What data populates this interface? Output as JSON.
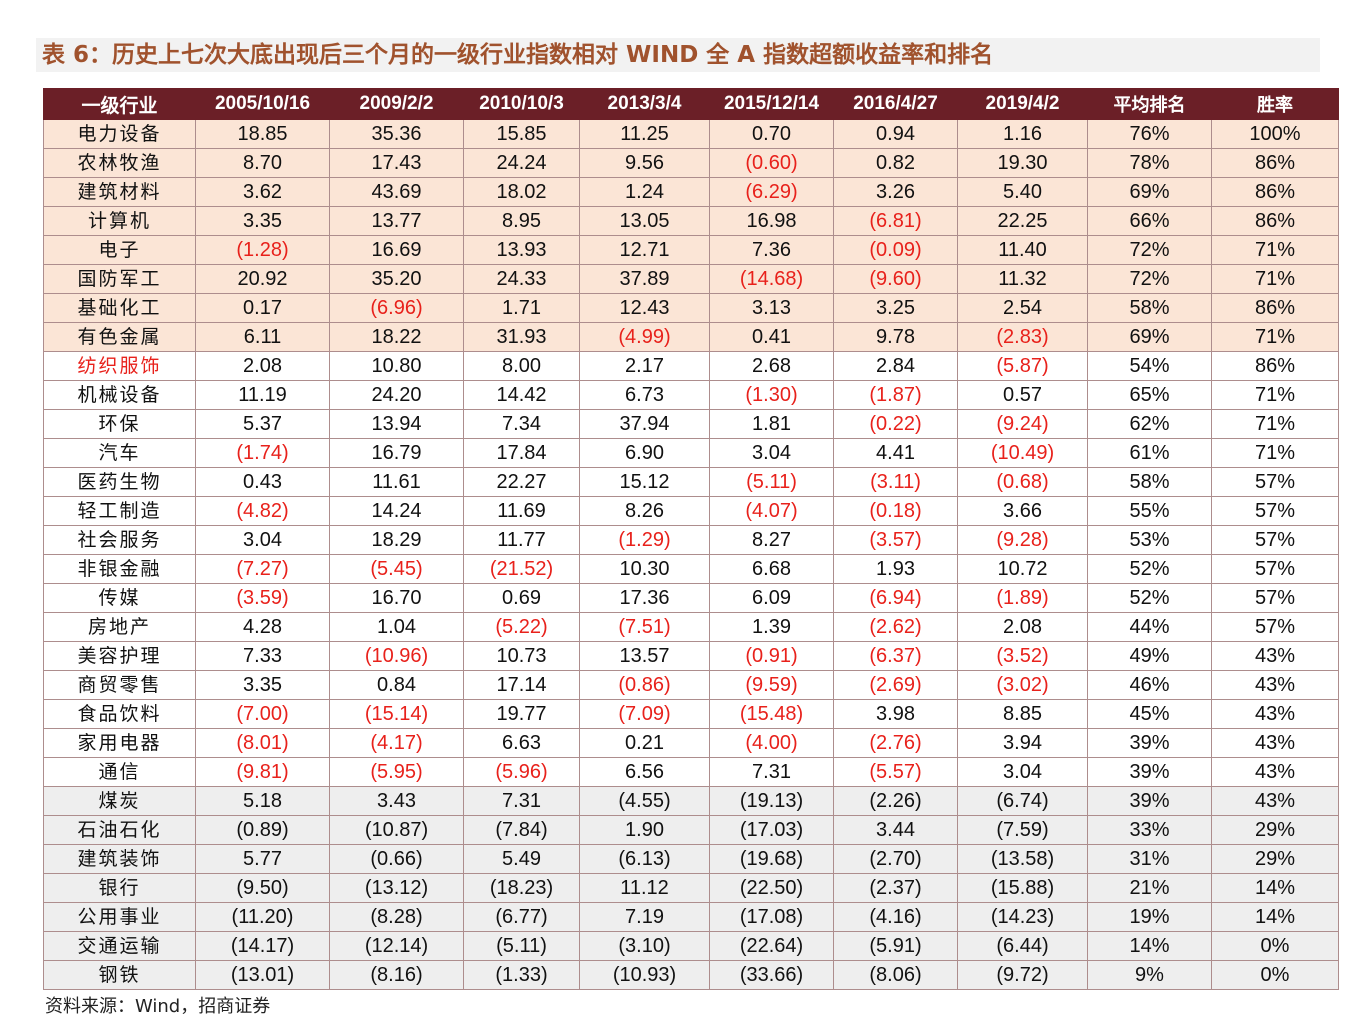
{
  "title": "表 6：历史上七次大底出现后三个月的一级行业指数相对 WIND 全 A 指数超额收益率和排名",
  "colors": {
    "header_bg": "#6b1f27",
    "top_group_bg": "#fbe5d6",
    "bottom_group_bg": "#eeeeee",
    "negative_text": "#e8211b",
    "title_text": "#a0522d"
  },
  "table": {
    "headers": [
      "一级行业",
      "2005/10/16",
      "2009/2/2",
      "2010/10/3",
      "2013/3/4",
      "2015/12/14",
      "2016/4/27",
      "2019/4/2",
      "平均排名",
      "胜率"
    ],
    "rows": [
      {
        "group": "top",
        "cells": [
          "电力设备",
          "18.85",
          "35.36",
          "15.85",
          "11.25",
          "0.70",
          "0.94",
          "1.16",
          "76%",
          "100%"
        ]
      },
      {
        "group": "top",
        "cells": [
          "农林牧渔",
          "8.70",
          "17.43",
          "24.24",
          "9.56",
          "(0.60)",
          "0.82",
          "19.30",
          "78%",
          "86%"
        ]
      },
      {
        "group": "top",
        "cells": [
          "建筑材料",
          "3.62",
          "43.69",
          "18.02",
          "1.24",
          "(6.29)",
          "3.26",
          "5.40",
          "69%",
          "86%"
        ]
      },
      {
        "group": "top",
        "cells": [
          "计算机",
          "3.35",
          "13.77",
          "8.95",
          "13.05",
          "16.98",
          "(6.81)",
          "22.25",
          "66%",
          "86%"
        ]
      },
      {
        "group": "top",
        "cells": [
          "电子",
          "(1.28)",
          "16.69",
          "13.93",
          "12.71",
          "7.36",
          "(0.09)",
          "11.40",
          "72%",
          "71%"
        ]
      },
      {
        "group": "top",
        "cells": [
          "国防军工",
          "20.92",
          "35.20",
          "24.33",
          "37.89",
          "(14.68)",
          "(9.60)",
          "11.32",
          "72%",
          "71%"
        ]
      },
      {
        "group": "top",
        "cells": [
          "基础化工",
          "0.17",
          "(6.96)",
          "1.71",
          "12.43",
          "3.13",
          "3.25",
          "2.54",
          "58%",
          "86%"
        ]
      },
      {
        "group": "top",
        "cells": [
          "有色金属",
          "6.11",
          "18.22",
          "31.93",
          "(4.99)",
          "0.41",
          "9.78",
          "(2.83)",
          "69%",
          "71%"
        ]
      },
      {
        "group": "mid",
        "cells": [
          "纺织服饰",
          "2.08",
          "10.80",
          "8.00",
          "2.17",
          "2.68",
          "2.84",
          "(5.87)",
          "54%",
          "86%"
        ]
      },
      {
        "group": "mid",
        "cells": [
          "机械设备",
          "11.19",
          "24.20",
          "14.42",
          "6.73",
          "(1.30)",
          "(1.87)",
          "0.57",
          "65%",
          "71%"
        ]
      },
      {
        "group": "mid",
        "cells": [
          "环保",
          "5.37",
          "13.94",
          "7.34",
          "37.94",
          "1.81",
          "(0.22)",
          "(9.24)",
          "62%",
          "71%"
        ]
      },
      {
        "group": "mid",
        "cells": [
          "汽车",
          "(1.74)",
          "16.79",
          "17.84",
          "6.90",
          "3.04",
          "4.41",
          "(10.49)",
          "61%",
          "71%"
        ]
      },
      {
        "group": "mid",
        "cells": [
          "医药生物",
          "0.43",
          "11.61",
          "22.27",
          "15.12",
          "(5.11)",
          "(3.11)",
          "(0.68)",
          "58%",
          "57%"
        ]
      },
      {
        "group": "mid",
        "cells": [
          "轻工制造",
          "(4.82)",
          "14.24",
          "11.69",
          "8.26",
          "(4.07)",
          "(0.18)",
          "3.66",
          "55%",
          "57%"
        ]
      },
      {
        "group": "mid",
        "cells": [
          "社会服务",
          "3.04",
          "18.29",
          "11.77",
          "(1.29)",
          "8.27",
          "(3.57)",
          "(9.28)",
          "53%",
          "57%"
        ]
      },
      {
        "group": "mid",
        "cells": [
          "非银金融",
          "(7.27)",
          "(5.45)",
          "(21.52)",
          "10.30",
          "6.68",
          "1.93",
          "10.72",
          "52%",
          "57%"
        ]
      },
      {
        "group": "mid",
        "cells": [
          "传媒",
          "(3.59)",
          "16.70",
          "0.69",
          "17.36",
          "6.09",
          "(6.94)",
          "(1.89)",
          "52%",
          "57%"
        ]
      },
      {
        "group": "mid",
        "cells": [
          "房地产",
          "4.28",
          "1.04",
          "(5.22)",
          "(7.51)",
          "1.39",
          "(2.62)",
          "2.08",
          "44%",
          "57%"
        ]
      },
      {
        "group": "mid",
        "cells": [
          "美容护理",
          "7.33",
          "(10.96)",
          "10.73",
          "13.57",
          "(0.91)",
          "(6.37)",
          "(3.52)",
          "49%",
          "43%"
        ]
      },
      {
        "group": "mid",
        "cells": [
          "商贸零售",
          "3.35",
          "0.84",
          "17.14",
          "(0.86)",
          "(9.59)",
          "(2.69)",
          "(3.02)",
          "46%",
          "43%"
        ]
      },
      {
        "group": "mid",
        "cells": [
          "食品饮料",
          "(7.00)",
          "(15.14)",
          "19.77",
          "(7.09)",
          "(15.48)",
          "3.98",
          "8.85",
          "45%",
          "43%"
        ]
      },
      {
        "group": "mid",
        "cells": [
          "家用电器",
          "(8.01)",
          "(4.17)",
          "6.63",
          "0.21",
          "(4.00)",
          "(2.76)",
          "3.94",
          "39%",
          "43%"
        ]
      },
      {
        "group": "mid",
        "cells": [
          "通信",
          "(9.81)",
          "(5.95)",
          "(5.96)",
          "6.56",
          "7.31",
          "(5.57)",
          "3.04",
          "39%",
          "43%"
        ]
      },
      {
        "group": "bot",
        "cells": [
          "煤炭",
          "5.18",
          "3.43",
          "7.31",
          "(4.55)",
          "(19.13)",
          "(2.26)",
          "(6.74)",
          "39%",
          "43%"
        ]
      },
      {
        "group": "bot",
        "cells": [
          "石油石化",
          "(0.89)",
          "(10.87)",
          "(7.84)",
          "1.90",
          "(17.03)",
          "3.44",
          "(7.59)",
          "33%",
          "29%"
        ]
      },
      {
        "group": "bot",
        "cells": [
          "建筑装饰",
          "5.77",
          "(0.66)",
          "5.49",
          "(6.13)",
          "(19.68)",
          "(2.70)",
          "(13.58)",
          "31%",
          "29%"
        ]
      },
      {
        "group": "bot",
        "cells": [
          "银行",
          "(9.50)",
          "(13.12)",
          "(18.23)",
          "11.12",
          "(22.50)",
          "(2.37)",
          "(15.88)",
          "21%",
          "14%"
        ]
      },
      {
        "group": "bot",
        "cells": [
          "公用事业",
          "(11.20)",
          "(8.28)",
          "(6.77)",
          "7.19",
          "(17.08)",
          "(4.16)",
          "(14.23)",
          "19%",
          "14%"
        ]
      },
      {
        "group": "bot",
        "cells": [
          "交通运输",
          "(14.17)",
          "(12.14)",
          "(5.11)",
          "(3.10)",
          "(22.64)",
          "(5.91)",
          "(6.44)",
          "14%",
          "0%"
        ]
      },
      {
        "group": "bot",
        "cells": [
          "钢铁",
          "(13.01)",
          "(8.16)",
          "(1.33)",
          "(10.93)",
          "(33.66)",
          "(8.06)",
          "(9.72)",
          "9%",
          "0%"
        ]
      }
    ]
  },
  "source": "资料来源：Wind，招商证券"
}
